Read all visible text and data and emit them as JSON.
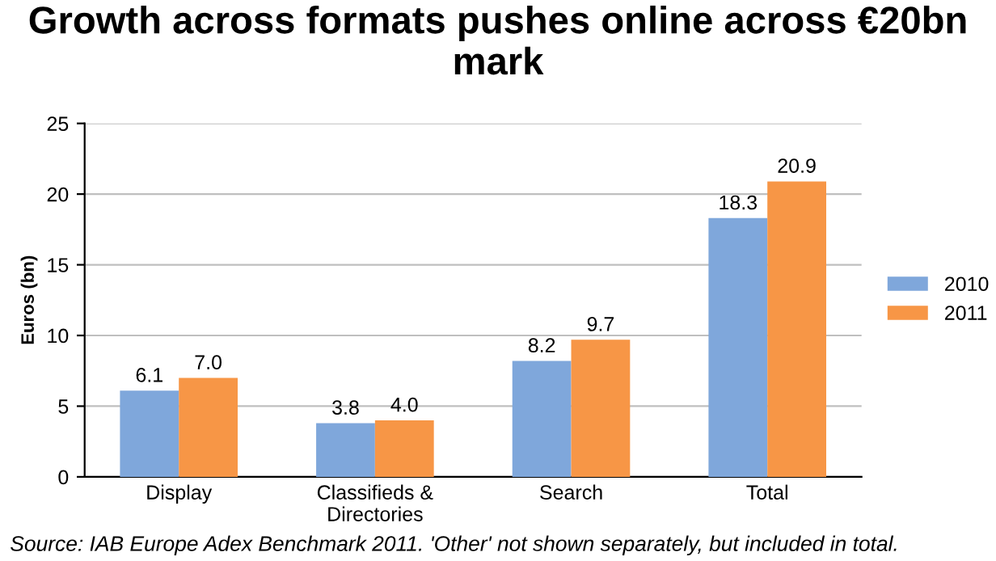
{
  "chart_data": {
    "type": "bar",
    "title": "Growth across formats pushes online across €20bn mark",
    "categories": [
      "Display",
      "Classifieds & Directories",
      "Search",
      "Total"
    ],
    "series": [
      {
        "name": "2010",
        "color": "#7fa7db",
        "values": [
          6.1,
          3.8,
          8.2,
          18.3
        ],
        "value_labels": [
          "6.1",
          "3.8",
          "8.2",
          "18.3"
        ]
      },
      {
        "name": "2011",
        "color": "#f79646",
        "values": [
          7.0,
          4.0,
          9.7,
          20.9
        ],
        "value_labels": [
          "7.0",
          "4.0",
          "9.7",
          "20.9"
        ]
      }
    ],
    "ylabel": "Euros (bn)",
    "ylim": [
      0,
      25
    ],
    "yticks": [
      0,
      5,
      10,
      15,
      20,
      25
    ],
    "grid": "y",
    "legend": "right",
    "annotations": [
      "Source: IAB Europe Adex Benchmark 2011. 'Other' not shown separately, but included in total."
    ]
  }
}
